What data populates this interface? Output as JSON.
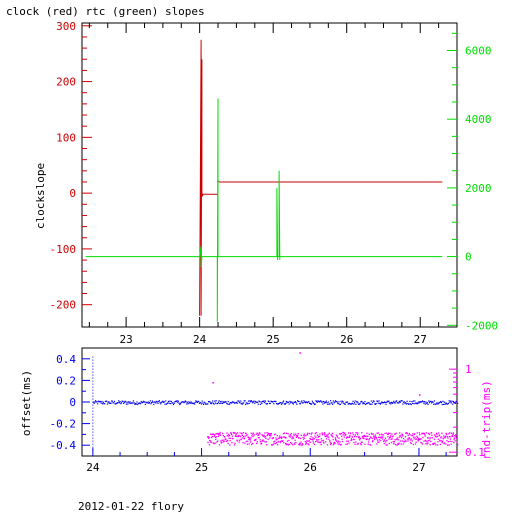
{
  "title": "clock (red) rtc (green) slopes",
  "footer": "2012-01-22 flory",
  "colors": {
    "red": "#cc0000",
    "green": "#00dd00",
    "blue": "#0000ee",
    "magenta": "#ff00ff",
    "axis": "#000000"
  },
  "chart_data": [
    {
      "type": "line",
      "title": "clock (red) rtc (green) slopes",
      "ylabel": "clockslope",
      "xlabel": "",
      "xlim": [
        22.4,
        27.5
      ],
      "ylim_left": [
        -240,
        305
      ],
      "ylim_right": [
        -2050,
        6800
      ],
      "x_ticks": [
        "23",
        "24",
        "25",
        "26",
        "27"
      ],
      "y_left_ticks": [
        "300",
        "200",
        "100",
        "0",
        "-100",
        "-200"
      ],
      "y_right_ticks": [
        "6000",
        "4000",
        "2000",
        "0",
        "-2000"
      ],
      "series": [
        {
          "name": "clock",
          "color": "#cc0000",
          "axis": "left",
          "x": [
            24.0,
            24.02,
            24.02,
            24.03,
            24.03,
            24.04,
            24.04,
            24.06,
            24.25,
            24.25,
            24.27,
            24.4,
            25.0,
            25.5,
            26.0,
            26.5,
            27.0,
            27.3
          ],
          "y": [
            -220,
            275,
            -220,
            240,
            -5,
            -5,
            -2,
            -2,
            -2,
            22,
            20,
            20,
            20,
            20,
            20,
            20,
            20,
            20
          ]
        },
        {
          "name": "rtc",
          "color": "#00dd00",
          "axis": "right",
          "x": [
            22.45,
            24.0,
            24.02,
            24.02,
            24.03,
            24.05,
            24.24,
            24.24,
            24.25,
            24.25,
            24.27,
            25.05,
            25.05,
            25.06,
            25.06,
            25.08,
            25.08,
            25.09,
            25.09,
            27.3
          ],
          "y": [
            0,
            0,
            300,
            -300,
            0,
            0,
            0,
            -1900,
            4600,
            0,
            0,
            0,
            2000,
            -100,
            0,
            0,
            2500,
            -100,
            0,
            0
          ]
        }
      ]
    },
    {
      "type": "scatter",
      "ylabel_left": "offset(ms)",
      "ylabel_right": "rnd-trip(ms)",
      "xlim": [
        23.9,
        27.35
      ],
      "ylim_left": [
        -0.5,
        0.5
      ],
      "ylim_right_log": [
        0.09,
        1.8
      ],
      "x_ticks": [
        "24",
        "25",
        "26",
        "27"
      ],
      "y_left_ticks": [
        "0.4",
        "0.2",
        "0",
        "-0.2",
        "-0.4"
      ],
      "y_right_ticks": [
        "1",
        "0.1"
      ],
      "series": [
        {
          "name": "offset",
          "color": "#0000ee",
          "axis": "left",
          "x_range": [
            24.0,
            27.35
          ],
          "level": 0.0,
          "spike_x": 24.0,
          "spike_y": [
            0.42,
            -0.45
          ]
        },
        {
          "name": "rnd-trip",
          "color": "#ff00ff",
          "axis": "right_log",
          "x_range": [
            25.05,
            27.35
          ],
          "level": 0.15,
          "outliers": [
            [
              25.1,
              0.7
            ],
            [
              25.9,
              1.6
            ],
            [
              27.0,
              0.5
            ]
          ]
        }
      ]
    }
  ]
}
